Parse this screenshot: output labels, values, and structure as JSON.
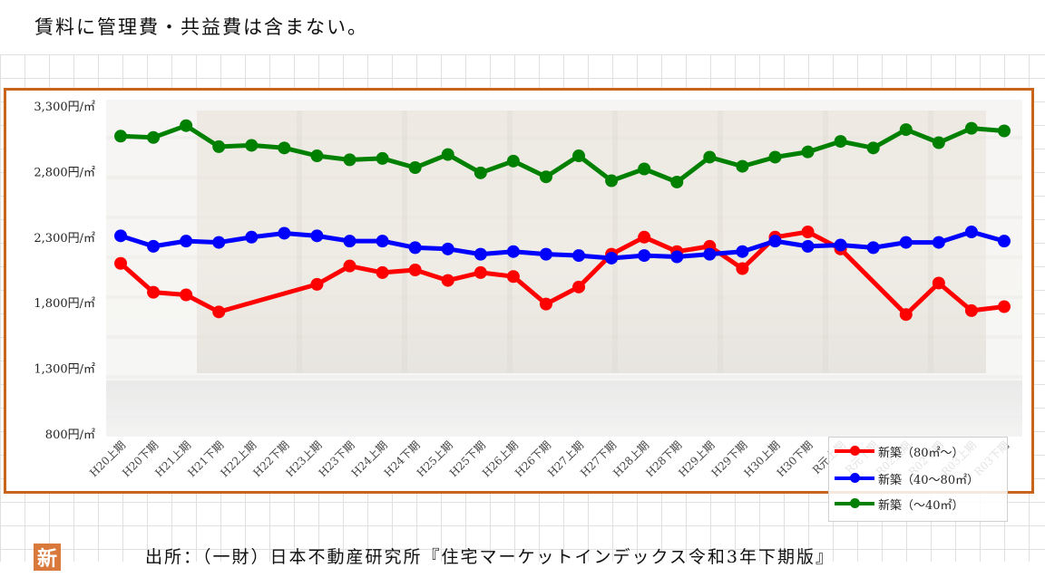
{
  "header": {
    "note": "賃料に管理費・共益費は含まない。"
  },
  "footer": {
    "source": "出所：（一財）日本不動産研究所『住宅マーケットインデックス令和3年下期版』"
  },
  "badge": {
    "text": "新"
  },
  "colors": {
    "frame": "#c8651b",
    "red": "#ff0000",
    "blue": "#0000ff",
    "green": "#008000"
  },
  "chart_data": {
    "type": "line",
    "title": "",
    "xlabel": "",
    "ylabel": "",
    "ylim": [
      800,
      3300
    ],
    "y_ticks": [
      800,
      1300,
      1800,
      2300,
      2800,
      3300
    ],
    "y_tick_labels": [
      "800円/㎡",
      "1,300円/㎡",
      "1,800円/㎡",
      "2,300円/㎡",
      "2,800円/㎡",
      "3,300円/㎡"
    ],
    "categories": [
      "H20上期",
      "H20下期",
      "H21上期",
      "H21下期",
      "H22上期",
      "H22下期",
      "H23上期",
      "H23下期",
      "H24上期",
      "H24下期",
      "H25上期",
      "H25下期",
      "H26上期",
      "H26下期",
      "H27上期",
      "H27下期",
      "H28上期",
      "H28下期",
      "H29上期",
      "H29下期",
      "H30上期",
      "H30下期",
      "R元上期",
      "R元下期",
      "R02上期",
      "R02下期",
      "R03上期",
      "R03下期"
    ],
    "legend_position": "bottom-right",
    "grid": false,
    "series": [
      {
        "name": "新築（80㎡～）",
        "color": "#ff0000",
        "points": [
          [
            "H20上期",
            2100
          ],
          [
            "H20下期",
            1880
          ],
          [
            "H21上期",
            1860
          ],
          [
            "H21下期",
            1730
          ],
          [
            "H23上期",
            1940
          ],
          [
            "H23下期",
            2080
          ],
          [
            "H24上期",
            2030
          ],
          [
            "H24下期",
            2050
          ],
          [
            "H25上期",
            1970
          ],
          [
            "H25下期",
            2030
          ],
          [
            "H26上期",
            2000
          ],
          [
            "H26下期",
            1790
          ],
          [
            "H27上期",
            1920
          ],
          [
            "H27下期",
            2170
          ],
          [
            "H28上期",
            2300
          ],
          [
            "H28下期",
            2190
          ],
          [
            "H29上期",
            2230
          ],
          [
            "H29下期",
            2060
          ],
          [
            "H30上期",
            2300
          ],
          [
            "H30下期",
            2340
          ],
          [
            "R元上期",
            2210
          ],
          [
            "R02上期",
            1710
          ],
          [
            "R02下期",
            1950
          ],
          [
            "R03上期",
            1740
          ],
          [
            "R03下期",
            1770
          ]
        ]
      },
      {
        "name": "新築（40～80㎡）",
        "color": "#0000ff",
        "points": [
          [
            "H20上期",
            2310
          ],
          [
            "H20下期",
            2230
          ],
          [
            "H21上期",
            2270
          ],
          [
            "H21下期",
            2260
          ],
          [
            "H22上期",
            2300
          ],
          [
            "H22下期",
            2330
          ],
          [
            "H23上期",
            2310
          ],
          [
            "H23下期",
            2270
          ],
          [
            "H24上期",
            2270
          ],
          [
            "H24下期",
            2220
          ],
          [
            "H25上期",
            2210
          ],
          [
            "H25下期",
            2170
          ],
          [
            "H26上期",
            2190
          ],
          [
            "H26下期",
            2170
          ],
          [
            "H27上期",
            2160
          ],
          [
            "H27下期",
            2140
          ],
          [
            "H28上期",
            2160
          ],
          [
            "H28下期",
            2150
          ],
          [
            "H29上期",
            2170
          ],
          [
            "H29下期",
            2190
          ],
          [
            "H30上期",
            2270
          ],
          [
            "H30下期",
            2230
          ],
          [
            "R元上期",
            2240
          ],
          [
            "R元下期",
            2220
          ],
          [
            "R02上期",
            2260
          ],
          [
            "R02下期",
            2260
          ],
          [
            "R03上期",
            2340
          ],
          [
            "R03下期",
            2270
          ]
        ]
      },
      {
        "name": "新築（～40㎡）",
        "color": "#008000",
        "points": [
          [
            "H20上期",
            3070
          ],
          [
            "H20下期",
            3060
          ],
          [
            "H21上期",
            3150
          ],
          [
            "H21下期",
            2990
          ],
          [
            "H22上期",
            3000
          ],
          [
            "H22下期",
            2980
          ],
          [
            "H23上期",
            2920
          ],
          [
            "H23下期",
            2890
          ],
          [
            "H24上期",
            2900
          ],
          [
            "H24下期",
            2830
          ],
          [
            "H25上期",
            2930
          ],
          [
            "H25下期",
            2790
          ],
          [
            "H26上期",
            2880
          ],
          [
            "H26下期",
            2760
          ],
          [
            "H27上期",
            2920
          ],
          [
            "H27下期",
            2730
          ],
          [
            "H28上期",
            2820
          ],
          [
            "H28下期",
            2720
          ],
          [
            "H29上期",
            2910
          ],
          [
            "H29下期",
            2840
          ],
          [
            "H30上期",
            2910
          ],
          [
            "H30下期",
            2950
          ],
          [
            "R元上期",
            3030
          ],
          [
            "R元下期",
            2980
          ],
          [
            "R02上期",
            3120
          ],
          [
            "R02下期",
            3020
          ],
          [
            "R03上期",
            3130
          ],
          [
            "R03下期",
            3110
          ]
        ]
      }
    ]
  }
}
